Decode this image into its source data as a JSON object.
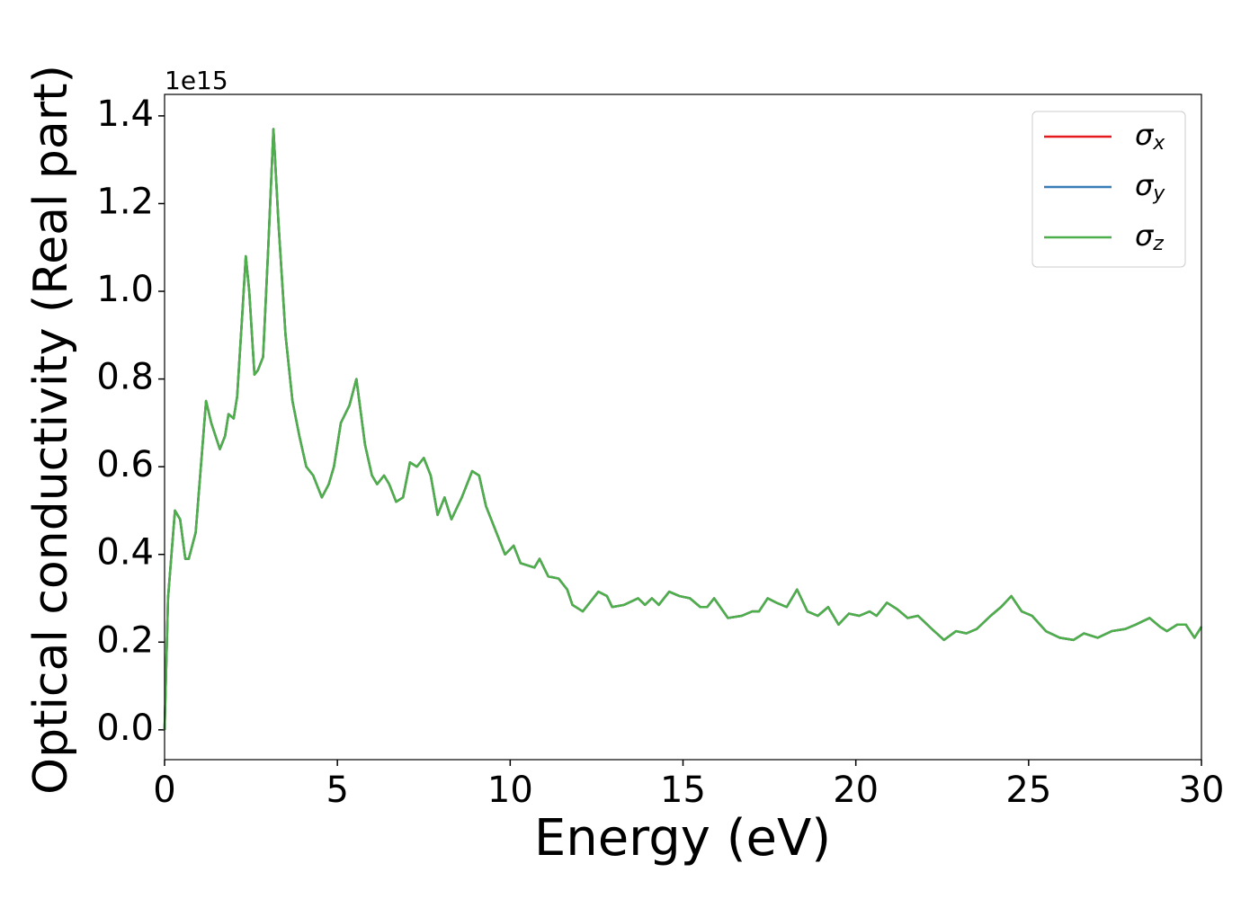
{
  "chart_data": {
    "type": "line",
    "xlabel": "Energy (eV)",
    "ylabel": "Optical conductivity (Real part)",
    "y_offset_label": "1e15",
    "x": [
      0,
      0.1,
      0.3,
      0.45,
      0.6,
      0.7,
      0.9,
      1.0,
      1.2,
      1.35,
      1.6,
      1.75,
      1.85,
      2.0,
      2.1,
      2.25,
      2.35,
      2.45,
      2.6,
      2.7,
      2.85,
      3.0,
      3.15,
      3.3,
      3.5,
      3.7,
      3.9,
      4.1,
      4.3,
      4.55,
      4.75,
      4.9,
      5.1,
      5.35,
      5.55,
      5.8,
      6.0,
      6.15,
      6.35,
      6.5,
      6.7,
      6.9,
      7.1,
      7.3,
      7.5,
      7.7,
      7.9,
      8.1,
      8.3,
      8.6,
      8.9,
      9.1,
      9.3,
      9.6,
      9.85,
      10.1,
      10.3,
      10.7,
      10.85,
      11.1,
      11.4,
      11.65,
      11.8,
      12.1,
      12.3,
      12.55,
      12.8,
      12.95,
      13.3,
      13.7,
      13.9,
      14.1,
      14.3,
      14.6,
      14.9,
      15.2,
      15.5,
      15.7,
      15.9,
      16.3,
      16.7,
      17.0,
      17.2,
      17.45,
      17.7,
      18.0,
      18.3,
      18.6,
      18.9,
      19.2,
      19.5,
      19.8,
      20.1,
      20.4,
      20.6,
      20.9,
      21.2,
      21.5,
      21.8,
      22.2,
      22.55,
      22.9,
      23.2,
      23.5,
      23.9,
      24.2,
      24.5,
      24.8,
      25.1,
      25.5,
      25.9,
      26.3,
      26.6,
      27.0,
      27.4,
      27.8,
      28.1,
      28.5,
      28.8,
      29.0,
      29.3,
      29.55,
      29.8,
      30
    ],
    "series": [
      {
        "name": "σx",
        "color": "#e41a1c",
        "values": [
          0,
          0.3,
          0.5,
          0.48,
          0.39,
          0.39,
          0.45,
          0.55,
          0.75,
          0.7,
          0.64,
          0.67,
          0.72,
          0.71,
          0.76,
          0.95,
          1.08,
          1.0,
          0.81,
          0.82,
          0.85,
          1.1,
          1.37,
          1.15,
          0.9,
          0.75,
          0.67,
          0.6,
          0.58,
          0.53,
          0.56,
          0.6,
          0.7,
          0.74,
          0.8,
          0.65,
          0.58,
          0.56,
          0.58,
          0.56,
          0.52,
          0.53,
          0.61,
          0.6,
          0.62,
          0.58,
          0.49,
          0.53,
          0.48,
          0.53,
          0.59,
          0.58,
          0.51,
          0.45,
          0.4,
          0.42,
          0.38,
          0.37,
          0.39,
          0.35,
          0.345,
          0.32,
          0.285,
          0.27,
          0.29,
          0.315,
          0.305,
          0.28,
          0.285,
          0.3,
          0.285,
          0.3,
          0.285,
          0.315,
          0.305,
          0.3,
          0.28,
          0.28,
          0.3,
          0.255,
          0.26,
          0.27,
          0.27,
          0.3,
          0.29,
          0.28,
          0.32,
          0.27,
          0.26,
          0.28,
          0.24,
          0.265,
          0.26,
          0.27,
          0.26,
          0.29,
          0.275,
          0.255,
          0.26,
          0.23,
          0.205,
          0.225,
          0.22,
          0.23,
          0.26,
          0.28,
          0.305,
          0.27,
          0.26,
          0.225,
          0.21,
          0.205,
          0.22,
          0.21,
          0.225,
          0.23,
          0.24,
          0.255,
          0.235,
          0.225,
          0.24,
          0.24,
          0.21,
          0.235
        ]
      },
      {
        "name": "σy",
        "color": "#377eb8",
        "values": [
          0,
          0.3,
          0.5,
          0.48,
          0.39,
          0.39,
          0.45,
          0.55,
          0.75,
          0.7,
          0.64,
          0.67,
          0.72,
          0.71,
          0.76,
          0.95,
          1.08,
          1.0,
          0.81,
          0.82,
          0.85,
          1.1,
          1.37,
          1.15,
          0.9,
          0.75,
          0.67,
          0.6,
          0.58,
          0.53,
          0.56,
          0.6,
          0.7,
          0.74,
          0.8,
          0.65,
          0.58,
          0.56,
          0.58,
          0.56,
          0.52,
          0.53,
          0.61,
          0.6,
          0.62,
          0.58,
          0.49,
          0.53,
          0.48,
          0.53,
          0.59,
          0.58,
          0.51,
          0.45,
          0.4,
          0.42,
          0.38,
          0.37,
          0.39,
          0.35,
          0.345,
          0.32,
          0.285,
          0.27,
          0.29,
          0.315,
          0.305,
          0.28,
          0.285,
          0.3,
          0.285,
          0.3,
          0.285,
          0.315,
          0.305,
          0.3,
          0.28,
          0.28,
          0.3,
          0.255,
          0.26,
          0.27,
          0.27,
          0.3,
          0.29,
          0.28,
          0.32,
          0.27,
          0.26,
          0.28,
          0.24,
          0.265,
          0.26,
          0.27,
          0.26,
          0.29,
          0.275,
          0.255,
          0.26,
          0.23,
          0.205,
          0.225,
          0.22,
          0.23,
          0.26,
          0.28,
          0.305,
          0.27,
          0.26,
          0.225,
          0.21,
          0.205,
          0.22,
          0.21,
          0.225,
          0.23,
          0.24,
          0.255,
          0.235,
          0.225,
          0.24,
          0.24,
          0.21,
          0.235
        ]
      },
      {
        "name": "σz",
        "color": "#4daf4a",
        "values": [
          0,
          0.3,
          0.5,
          0.48,
          0.39,
          0.39,
          0.45,
          0.55,
          0.75,
          0.7,
          0.64,
          0.67,
          0.72,
          0.71,
          0.76,
          0.95,
          1.08,
          1.0,
          0.81,
          0.82,
          0.85,
          1.1,
          1.37,
          1.15,
          0.9,
          0.75,
          0.67,
          0.6,
          0.58,
          0.53,
          0.56,
          0.6,
          0.7,
          0.74,
          0.8,
          0.65,
          0.58,
          0.56,
          0.58,
          0.56,
          0.52,
          0.53,
          0.61,
          0.6,
          0.62,
          0.58,
          0.49,
          0.53,
          0.48,
          0.53,
          0.59,
          0.58,
          0.51,
          0.45,
          0.4,
          0.42,
          0.38,
          0.37,
          0.39,
          0.35,
          0.345,
          0.32,
          0.285,
          0.27,
          0.29,
          0.315,
          0.305,
          0.28,
          0.285,
          0.3,
          0.285,
          0.3,
          0.285,
          0.315,
          0.305,
          0.3,
          0.28,
          0.28,
          0.3,
          0.255,
          0.26,
          0.27,
          0.27,
          0.3,
          0.29,
          0.28,
          0.32,
          0.27,
          0.26,
          0.28,
          0.24,
          0.265,
          0.26,
          0.27,
          0.26,
          0.29,
          0.275,
          0.255,
          0.26,
          0.23,
          0.205,
          0.225,
          0.22,
          0.23,
          0.26,
          0.28,
          0.305,
          0.27,
          0.26,
          0.225,
          0.21,
          0.205,
          0.22,
          0.21,
          0.225,
          0.23,
          0.24,
          0.255,
          0.235,
          0.225,
          0.24,
          0.24,
          0.21,
          0.235
        ]
      }
    ],
    "xlim": [
      0,
      30
    ],
    "xticks": [
      0,
      5,
      10,
      15,
      20,
      25,
      30
    ],
    "ylim": [
      -0.068,
      1.449
    ],
    "yticks": [
      {
        "value": 0,
        "label": "0.0"
      },
      0.2,
      0.4,
      0.6,
      0.8,
      {
        "value": 1,
        "label": "1.0"
      },
      1.2,
      1.4
    ],
    "grid": false,
    "legend": "upper right"
  }
}
